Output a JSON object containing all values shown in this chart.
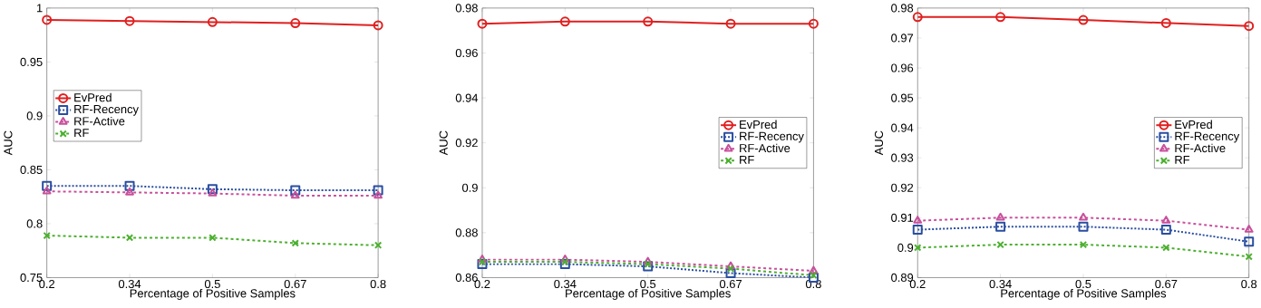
{
  "chart_data": [
    {
      "type": "line",
      "xlabel": "Percentage of Positive Samples",
      "ylabel": "AUC",
      "categories": [
        "0.2",
        "0.34",
        "0.5",
        "0.67",
        "0.8"
      ],
      "ylim": [
        0.75,
        1
      ],
      "yticks": [
        0.75,
        0.8,
        0.85,
        0.9,
        0.95,
        1
      ],
      "legend": "left",
      "series": [
        {
          "name": "EvPred",
          "color": "#e02020",
          "marker": "circle",
          "line_style": "solid",
          "values": [
            0.989,
            0.988,
            0.987,
            0.986,
            0.984
          ]
        },
        {
          "name": "RF-Recency",
          "color": "#2a4ea0",
          "marker": "square",
          "line_style": "dotted",
          "values": [
            0.835,
            0.835,
            0.832,
            0.831,
            0.831
          ]
        },
        {
          "name": "RF-Active",
          "color": "#c8509c",
          "marker": "triangle",
          "line_style": "dashed",
          "values": [
            0.83,
            0.829,
            0.828,
            0.826,
            0.826
          ]
        },
        {
          "name": "RF",
          "color": "#4cb030",
          "marker": "cross",
          "line_style": "dashed",
          "values": [
            0.789,
            0.787,
            0.787,
            0.782,
            0.78
          ]
        }
      ]
    },
    {
      "type": "line",
      "xlabel": "Percentage of Positive Samples",
      "ylabel": "AUC",
      "categories": [
        "0.2",
        "0.34",
        "0.5",
        "0.67",
        "0.8"
      ],
      "ylim": [
        0.86,
        0.98
      ],
      "yticks": [
        0.86,
        0.88,
        0.9,
        0.92,
        0.94,
        0.96,
        0.98
      ],
      "legend": "right",
      "series": [
        {
          "name": "EvPred",
          "color": "#e02020",
          "marker": "circle",
          "line_style": "solid",
          "values": [
            0.973,
            0.974,
            0.974,
            0.973,
            0.973
          ]
        },
        {
          "name": "RF-Recency",
          "color": "#2a4ea0",
          "marker": "square",
          "line_style": "dotted",
          "values": [
            0.866,
            0.866,
            0.865,
            0.862,
            0.86
          ]
        },
        {
          "name": "RF-Active",
          "color": "#c8509c",
          "marker": "triangle",
          "line_style": "dashed",
          "values": [
            0.868,
            0.868,
            0.867,
            0.865,
            0.863
          ]
        },
        {
          "name": "RF",
          "color": "#4cb030",
          "marker": "cross",
          "line_style": "dashed",
          "values": [
            0.867,
            0.867,
            0.866,
            0.864,
            0.861
          ]
        }
      ]
    },
    {
      "type": "line",
      "xlabel": "Percentage of Positive Samples",
      "ylabel": "AUC",
      "categories": [
        "0.2",
        "0.34",
        "0.5",
        "0.67",
        "0.8"
      ],
      "ylim": [
        0.89,
        0.98
      ],
      "yticks": [
        0.89,
        0.9,
        0.91,
        0.92,
        0.93,
        0.94,
        0.95,
        0.96,
        0.97,
        0.98
      ],
      "legend": "right",
      "series": [
        {
          "name": "EvPred",
          "color": "#e02020",
          "marker": "circle",
          "line_style": "solid",
          "values": [
            0.977,
            0.977,
            0.976,
            0.975,
            0.974
          ]
        },
        {
          "name": "RF-Recency",
          "color": "#2a4ea0",
          "marker": "square",
          "line_style": "dotted",
          "values": [
            0.906,
            0.907,
            0.907,
            0.906,
            0.902
          ]
        },
        {
          "name": "RF-Active",
          "color": "#c8509c",
          "marker": "triangle",
          "line_style": "dashed",
          "values": [
            0.909,
            0.91,
            0.91,
            0.909,
            0.906
          ]
        },
        {
          "name": "RF",
          "color": "#4cb030",
          "marker": "cross",
          "line_style": "dashed",
          "values": [
            0.9,
            0.901,
            0.901,
            0.9,
            0.897
          ]
        }
      ]
    }
  ]
}
